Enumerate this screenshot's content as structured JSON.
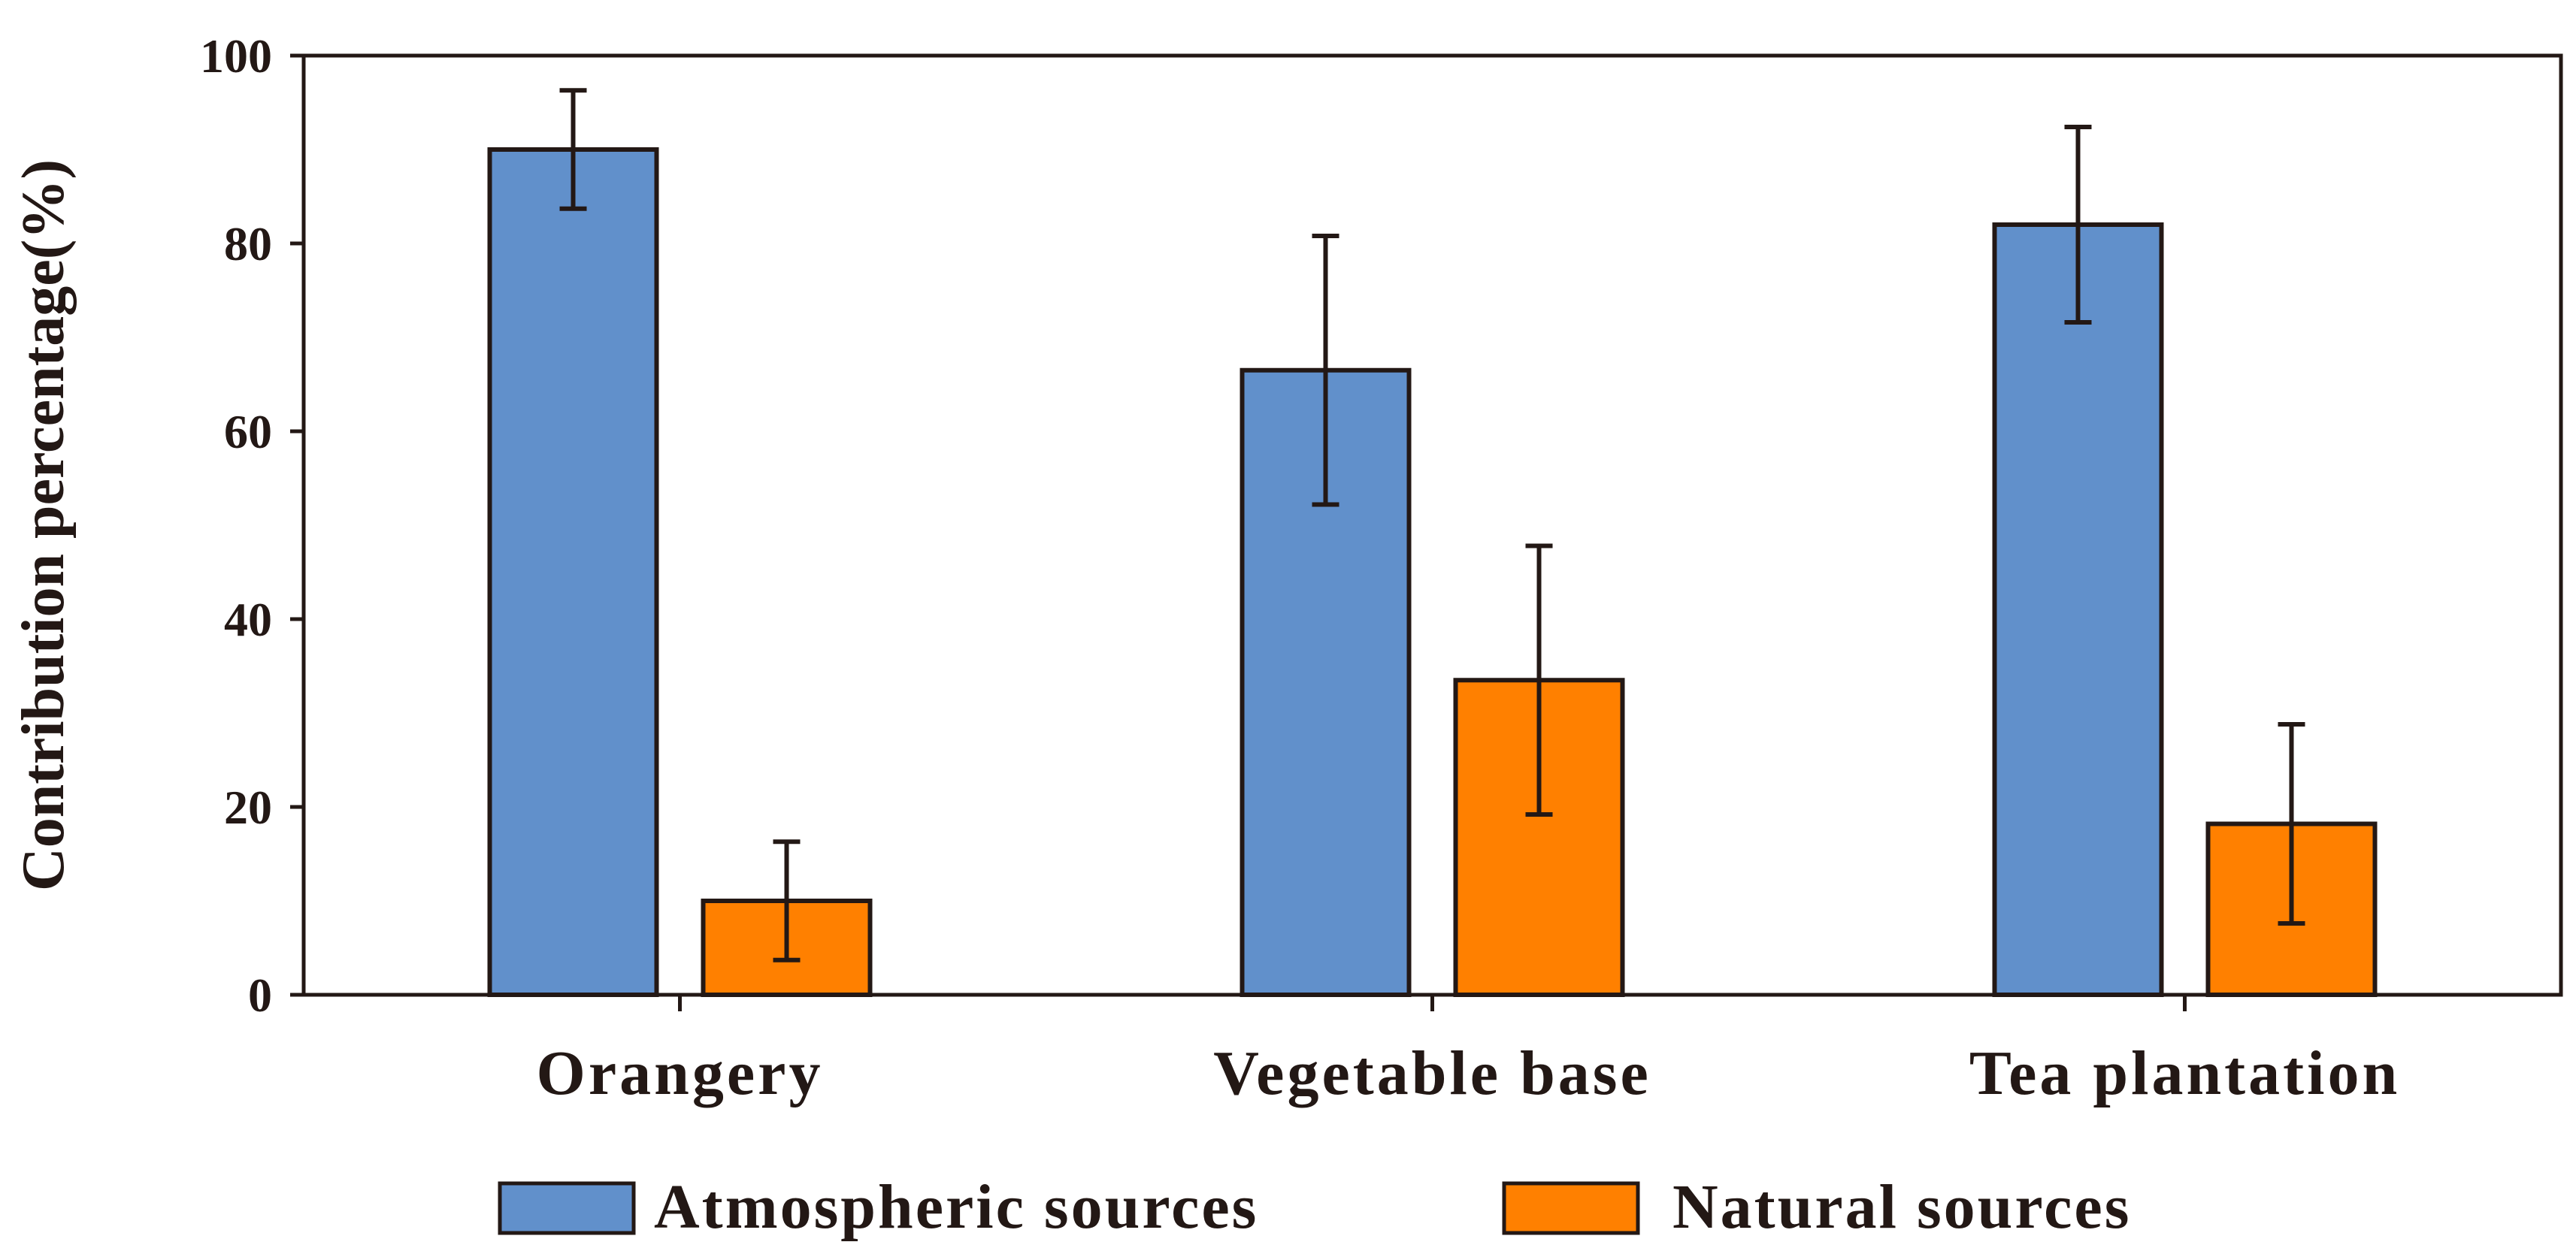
{
  "chart_data": {
    "type": "bar",
    "title": "",
    "xlabel": "",
    "ylabel": "Contribution percentage(%)",
    "ylim": [
      0,
      100
    ],
    "yticks": [
      0,
      20,
      40,
      60,
      80,
      100
    ],
    "categories": [
      "Orangery",
      "Vegetable base",
      "Tea plantation"
    ],
    "series": [
      {
        "name": "Atmospheric sources",
        "color": "#6190CB",
        "values": [
          90,
          66.5,
          82
        ],
        "errors": [
          6.3,
          14.3,
          10.4
        ]
      },
      {
        "name": "Natural sources",
        "color": "#FF8000",
        "values": [
          10,
          33.5,
          18.2
        ],
        "errors": [
          6.3,
          14.3,
          10.6
        ]
      }
    ],
    "legend_position": "bottom"
  }
}
